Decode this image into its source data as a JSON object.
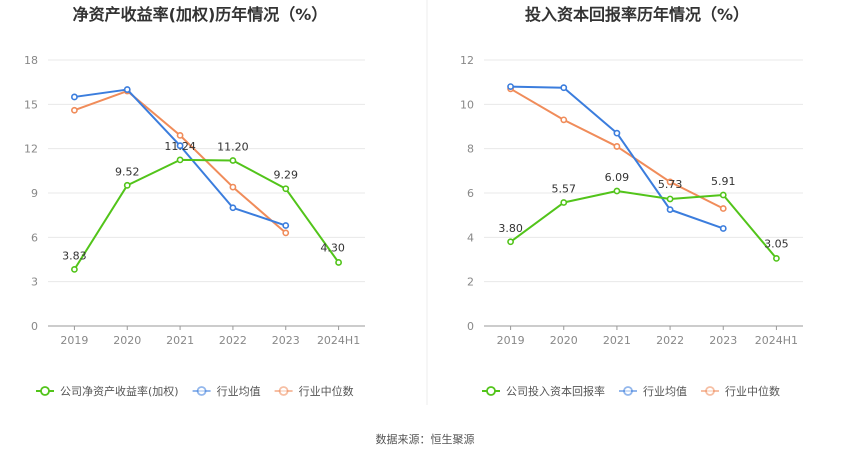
{
  "footer": {
    "source": "数据来源：恒生聚源"
  },
  "chart_data": [
    {
      "type": "line",
      "title": "净资产收益率(加权)历年情况（%）",
      "categories": [
        "2019",
        "2020",
        "2021",
        "2022",
        "2023",
        "2024H1"
      ],
      "ylim": [
        0,
        18
      ],
      "yticks": [
        0,
        3,
        6,
        9,
        12,
        15,
        18
      ],
      "grid": true,
      "legend_position": "bottom",
      "series": [
        {
          "name": "公司净资产收益率(加权)",
          "color": "#52c41a",
          "values": [
            3.83,
            9.52,
            11.24,
            11.2,
            9.29,
            4.3
          ],
          "labels": [
            "3.83",
            "9.52",
            "11.24",
            "11.20",
            "9.29",
            "4.30"
          ]
        },
        {
          "name": "行业均值",
          "color": "#3b7ddd",
          "values": [
            15.5,
            16.0,
            12.2,
            8.0,
            6.8,
            null
          ]
        },
        {
          "name": "行业中位数",
          "color": "#f08c5a",
          "values": [
            14.6,
            15.9,
            12.9,
            9.4,
            6.3,
            null
          ]
        }
      ]
    },
    {
      "type": "line",
      "title": "投入资本回报率历年情况（%）",
      "categories": [
        "2019",
        "2020",
        "2021",
        "2022",
        "2023",
        "2024H1"
      ],
      "ylim": [
        0,
        12
      ],
      "yticks": [
        0,
        2,
        4,
        6,
        8,
        10,
        12
      ],
      "grid": true,
      "legend_position": "bottom",
      "series": [
        {
          "name": "公司投入资本回报率",
          "color": "#52c41a",
          "values": [
            3.8,
            5.57,
            6.09,
            5.73,
            5.91,
            3.05
          ],
          "labels": [
            "3.80",
            "5.57",
            "6.09",
            "5.73",
            "5.91",
            "3.05"
          ]
        },
        {
          "name": "行业均值",
          "color": "#3b7ddd",
          "values": [
            10.8,
            10.75,
            8.7,
            5.25,
            4.4,
            null
          ]
        },
        {
          "name": "行业中位数",
          "color": "#f08c5a",
          "values": [
            10.7,
            9.3,
            8.1,
            6.5,
            5.3,
            null
          ]
        }
      ]
    }
  ]
}
